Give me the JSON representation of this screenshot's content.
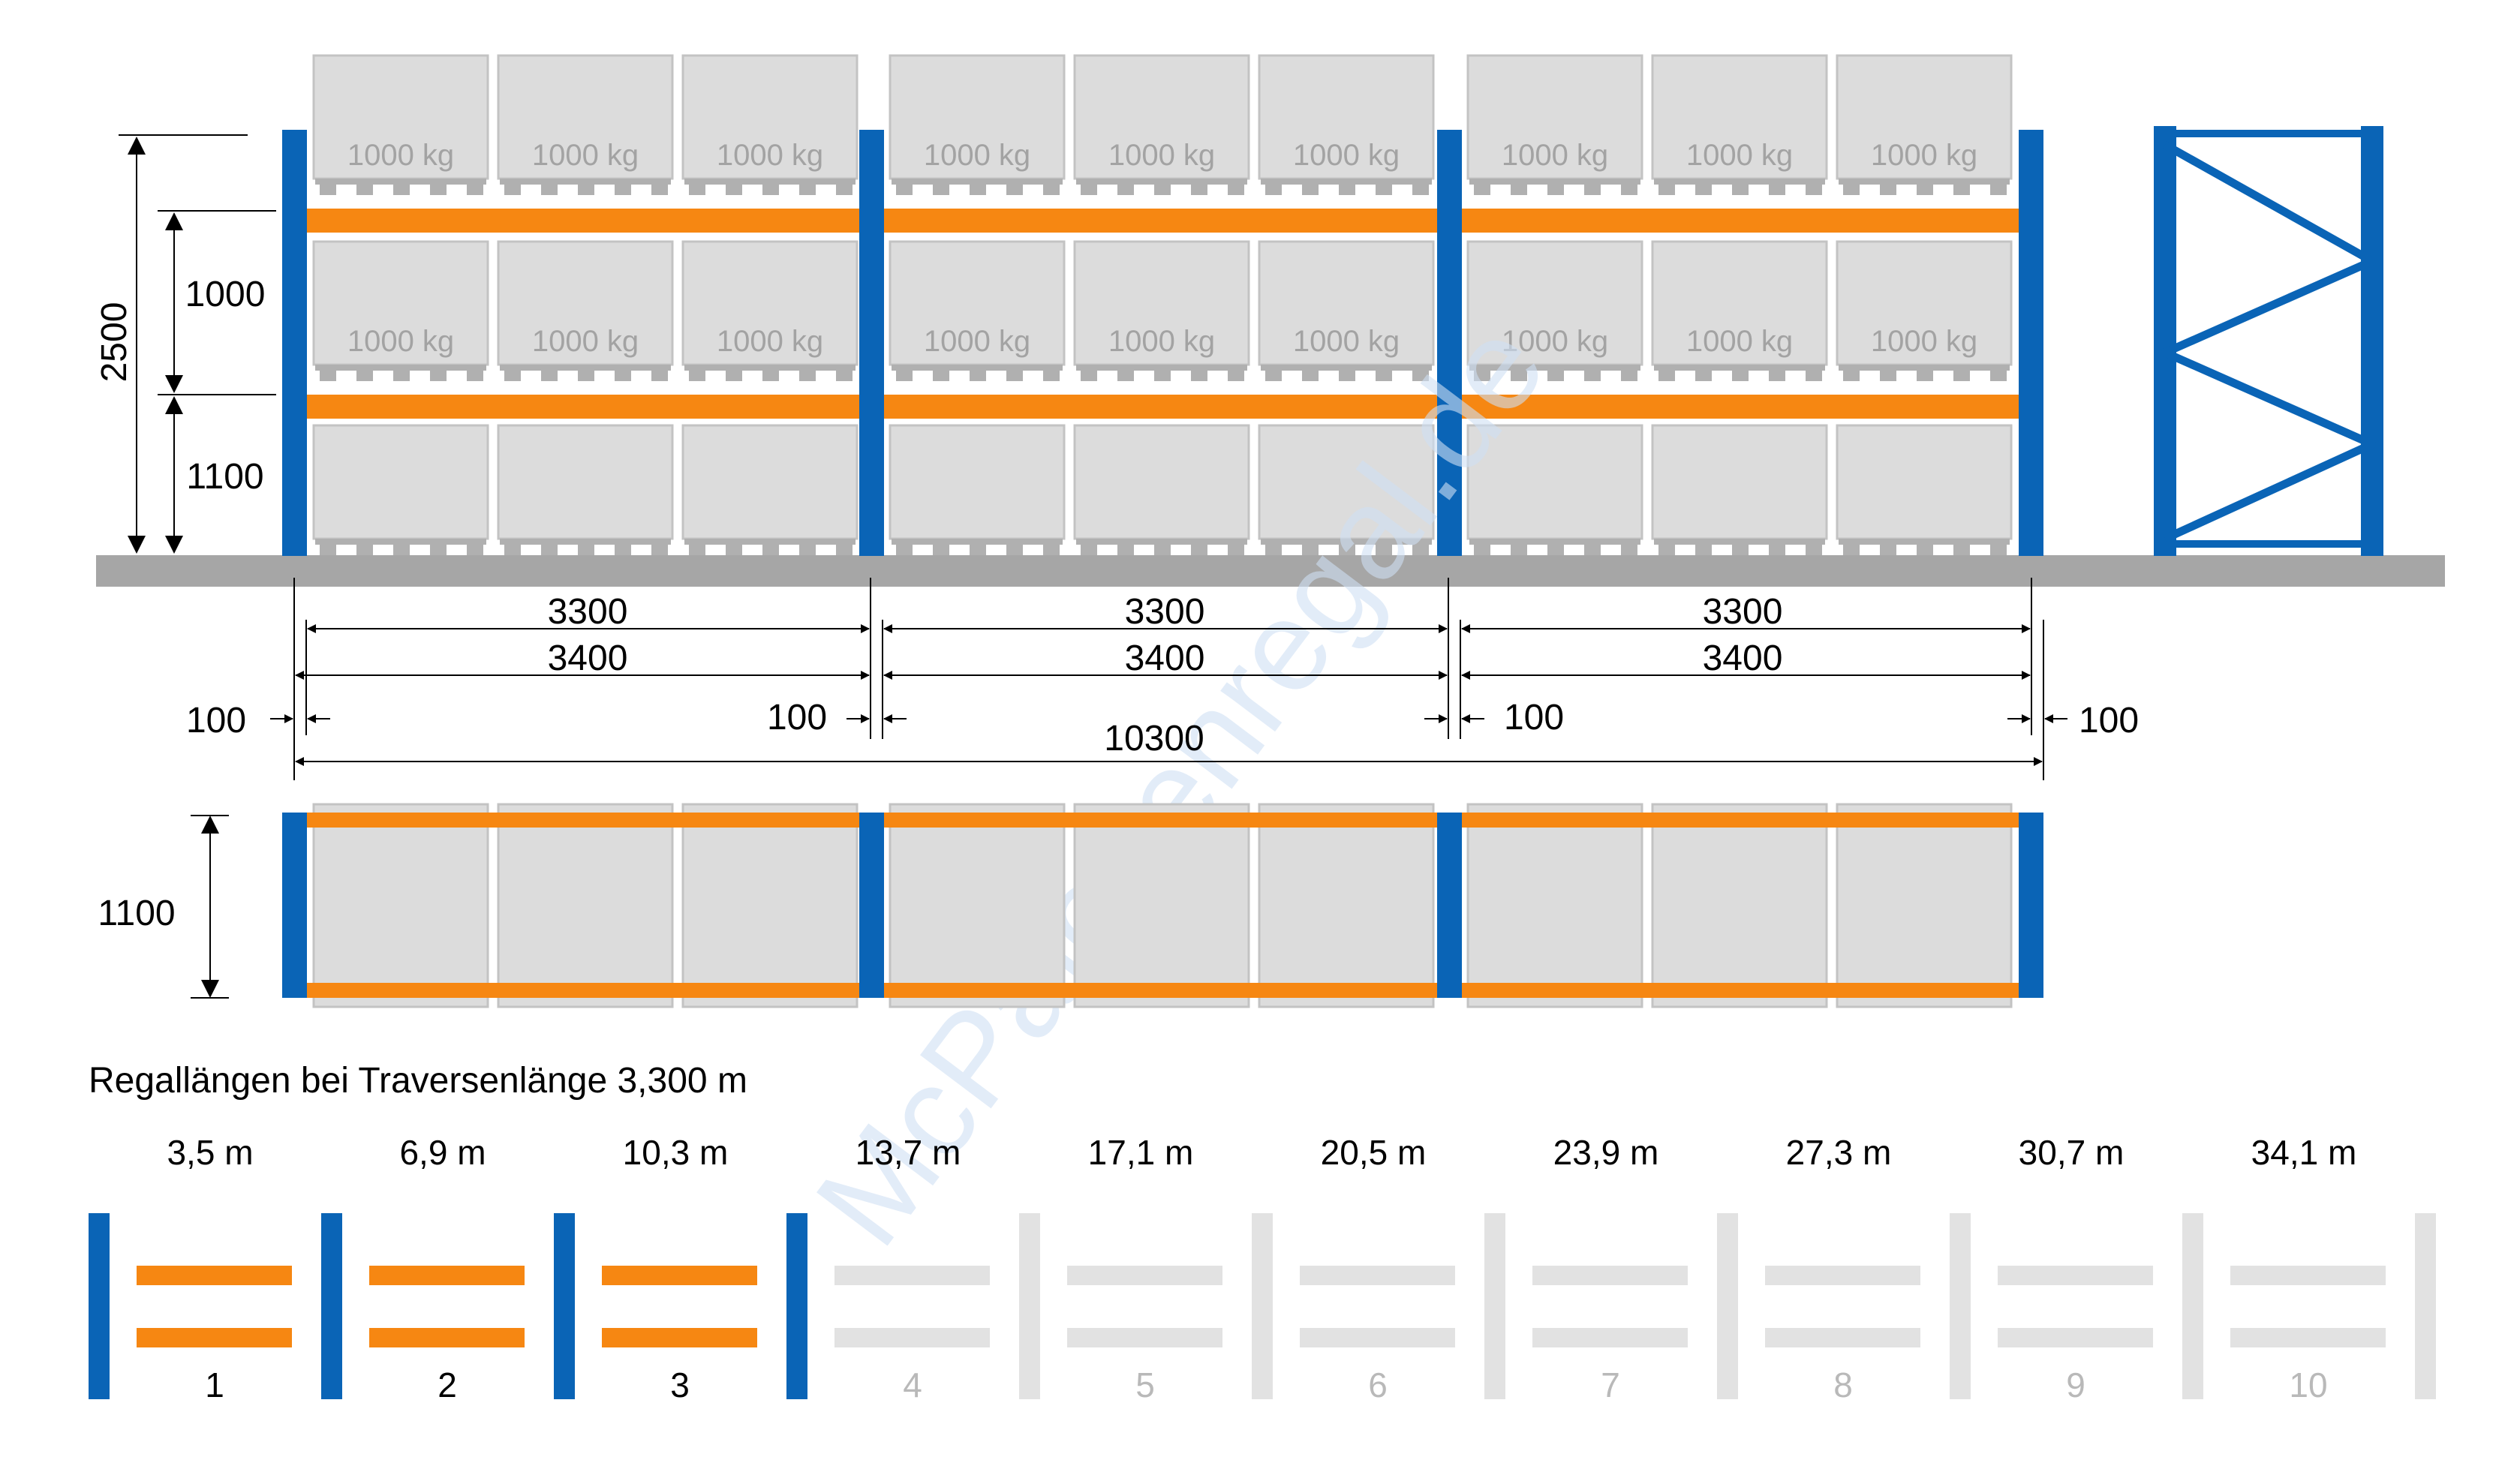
{
  "colors": {
    "upright": "#0a64b6",
    "beam": "#f68712",
    "pallet_box": "#dcdcdc",
    "pallet_border": "#c3c3c3",
    "pallet_base": "#b0b0b0",
    "floor": "#a6a6a6",
    "inactive": "#e2e2e2",
    "dimension": "#000000",
    "weight_text": "#a3a3a3",
    "watermark": "#cfe0f4"
  },
  "pallet": {
    "load_label": "1000 kg"
  },
  "dimensions": {
    "height_total": "2500",
    "level_upper": "1000",
    "level_lower": "1100",
    "bay_clear": [
      "3300",
      "3300",
      "3300"
    ],
    "bay_pitch": [
      "3400",
      "3400",
      "3400"
    ],
    "upright_left": "100",
    "upright_inner_1": "100",
    "upright_inner_2": "100",
    "upright_right": "100",
    "total_length": "10300",
    "depth": "1100"
  },
  "watermark": {
    "text": "McPalettenregal.de"
  },
  "lengths": {
    "heading": "Regallängen bei Traversenlänge 3,300 m",
    "items": [
      {
        "length": "3,5 m",
        "index": "1",
        "active": true
      },
      {
        "length": "6,9 m",
        "index": "2",
        "active": true
      },
      {
        "length": "10,3 m",
        "index": "3",
        "active": true
      },
      {
        "length": "13,7 m",
        "index": "4",
        "active": false
      },
      {
        "length": "17,1 m",
        "index": "5",
        "active": false
      },
      {
        "length": "20,5 m",
        "index": "6",
        "active": false
      },
      {
        "length": "23,9 m",
        "index": "7",
        "active": false
      },
      {
        "length": "27,3 m",
        "index": "8",
        "active": false
      },
      {
        "length": "30,7 m",
        "index": "9",
        "active": false
      },
      {
        "length": "34,1 m",
        "index": "10",
        "active": false
      }
    ]
  }
}
